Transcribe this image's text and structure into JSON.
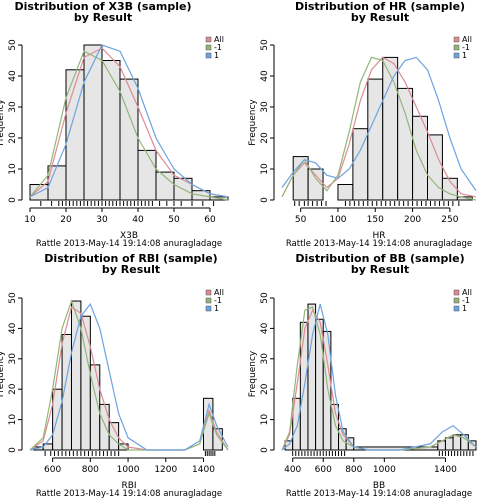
{
  "colors": {
    "bar_fill": "#e6e6e6",
    "bar_stroke": "#000000",
    "all": "#dd8b95",
    "neg1": "#94b67a",
    "pos1": "#6da3e0"
  },
  "legend_labels": [
    "All",
    "-1",
    "1"
  ],
  "footer": "Rattle 2013-May-14 19:14:08 anuragladage",
  "chart_data": [
    {
      "type": "bar",
      "title": "Distribution of X3B (sample)",
      "subtitle": "by Result",
      "xlabel": "X3B",
      "ylabel": "Frequency",
      "xlim": [
        10,
        65
      ],
      "ylim": [
        0,
        50
      ],
      "xticks": [
        10,
        20,
        30,
        40,
        50,
        60
      ],
      "yticks": [
        0,
        10,
        20,
        30,
        40,
        50
      ],
      "legend": "top-right",
      "bin_edges": [
        10,
        15,
        20,
        25,
        30,
        35,
        40,
        45,
        50,
        55,
        60,
        65
      ],
      "values": [
        5,
        11,
        42,
        50,
        45,
        39,
        16,
        9,
        7,
        3,
        1
      ],
      "rug": [
        13,
        16,
        18,
        19,
        20,
        21,
        22,
        23,
        24,
        25,
        26,
        27,
        28,
        29,
        30,
        31,
        32,
        33,
        34,
        35,
        36,
        37,
        38,
        39,
        40,
        41,
        42,
        43,
        44,
        46,
        48,
        50,
        52,
        55,
        58,
        61
      ],
      "series": [
        {
          "name": "All",
          "color_key": "all",
          "x": [
            10,
            15,
            20,
            25,
            30,
            35,
            40,
            45,
            50,
            55,
            60,
            65
          ],
          "y": [
            1,
            6,
            28,
            46,
            49,
            43,
            30,
            16,
            8,
            5,
            2,
            1
          ]
        },
        {
          "name": "-1",
          "color_key": "neg1",
          "x": [
            10,
            15,
            20,
            25,
            30,
            35,
            40,
            45,
            50,
            55,
            60,
            65
          ],
          "y": [
            1,
            8,
            33,
            48,
            45,
            35,
            20,
            10,
            5,
            2,
            1,
            0
          ]
        },
        {
          "name": "1",
          "color_key": "pos1",
          "x": [
            10,
            15,
            20,
            25,
            30,
            35,
            40,
            45,
            50,
            55,
            60,
            65
          ],
          "y": [
            1,
            4,
            18,
            38,
            50,
            48,
            36,
            20,
            10,
            5,
            2,
            1
          ]
        }
      ]
    },
    {
      "type": "bar",
      "title": "Distribution of HR (sample)",
      "subtitle": "by Result",
      "xlabel": "HR",
      "ylabel": "Frequency",
      "xlim": [
        25,
        285
      ],
      "ylim": [
        0,
        50
      ],
      "xticks": [
        50,
        100,
        150,
        200,
        250
      ],
      "yticks": [
        0,
        10,
        20,
        30,
        40,
        50
      ],
      "legend": "top-right",
      "bin_edges": [
        40,
        60,
        80,
        100,
        120,
        140,
        160,
        180,
        200,
        220,
        240,
        260,
        280
      ],
      "values": [
        14,
        10,
        0,
        5,
        23,
        39,
        46,
        36,
        27,
        21,
        7,
        1
      ],
      "rug": [
        42,
        48,
        55,
        60,
        66,
        72,
        78,
        84,
        110,
        116,
        122,
        128,
        134,
        140,
        146,
        152,
        158,
        164,
        170,
        176,
        182,
        188,
        194,
        200,
        206,
        212,
        218,
        224,
        230,
        236,
        242,
        248,
        254,
        262
      ],
      "series": [
        {
          "name": "All",
          "color_key": "all",
          "x": [
            25,
            40,
            55,
            70,
            85,
            100,
            115,
            130,
            145,
            160,
            175,
            190,
            205,
            220,
            235,
            250,
            265,
            285
          ],
          "y": [
            1,
            8,
            12,
            8,
            4,
            7,
            18,
            32,
            42,
            46,
            44,
            38,
            30,
            22,
            13,
            6,
            2,
            1
          ]
        },
        {
          "name": "-1",
          "color_key": "neg1",
          "x": [
            25,
            40,
            55,
            70,
            85,
            100,
            115,
            130,
            145,
            160,
            175,
            190,
            205,
            220,
            235,
            250,
            265,
            285
          ],
          "y": [
            1,
            8,
            13,
            7,
            3,
            8,
            22,
            38,
            46,
            45,
            38,
            28,
            16,
            8,
            4,
            2,
            1,
            0
          ]
        },
        {
          "name": "1",
          "color_key": "pos1",
          "x": [
            25,
            40,
            55,
            70,
            85,
            100,
            115,
            130,
            145,
            160,
            175,
            190,
            205,
            220,
            235,
            250,
            265,
            285
          ],
          "y": [
            4,
            9,
            13,
            12,
            8,
            7,
            10,
            16,
            24,
            32,
            40,
            45,
            46,
            42,
            32,
            20,
            10,
            3
          ]
        }
      ]
    },
    {
      "type": "bar",
      "title": "Distribution of RBI (sample)",
      "subtitle": "by Result",
      "xlabel": "RBI",
      "ylabel": "Frequency",
      "xlim": [
        480,
        1530
      ],
      "ylim": [
        0,
        50
      ],
      "xticks": [
        600,
        800,
        1000,
        1200,
        1400
      ],
      "yticks": [
        0,
        10,
        20,
        30,
        40,
        50
      ],
      "legend": "top-right",
      "bin_edges": [
        500,
        550,
        600,
        650,
        700,
        750,
        800,
        850,
        900,
        950,
        1000,
        1050,
        1100,
        1150,
        1200,
        1250,
        1300,
        1350,
        1400,
        1450,
        1500
      ],
      "values": [
        1,
        2,
        20,
        38,
        49,
        44,
        28,
        15,
        9,
        2,
        0,
        0,
        0,
        0,
        0,
        0,
        0,
        0,
        17,
        7
      ],
      "rug": [
        560,
        590,
        610,
        630,
        650,
        670,
        690,
        710,
        730,
        750,
        770,
        790,
        810,
        830,
        850,
        870,
        890,
        910,
        930,
        950,
        1410,
        1420,
        1430,
        1440,
        1450,
        1460
      ],
      "series": [
        {
          "name": "All",
          "color_key": "all",
          "x": [
            480,
            550,
            600,
            650,
            700,
            750,
            800,
            850,
            900,
            950,
            1000,
            1100,
            1200,
            1300,
            1380,
            1430,
            1470,
            1530
          ],
          "y": [
            0,
            3,
            15,
            35,
            47,
            45,
            34,
            20,
            10,
            4,
            1,
            0,
            0,
            0,
            2,
            13,
            6,
            0
          ]
        },
        {
          "name": "-1",
          "color_key": "neg1",
          "x": [
            480,
            550,
            600,
            650,
            700,
            750,
            800,
            850,
            900,
            950,
            1000,
            1100,
            1200,
            1300,
            1380,
            1430,
            1470,
            1530
          ],
          "y": [
            0,
            4,
            20,
            40,
            49,
            40,
            25,
            12,
            5,
            2,
            0,
            0,
            0,
            0,
            2,
            12,
            5,
            0
          ]
        },
        {
          "name": "1",
          "color_key": "pos1",
          "x": [
            480,
            550,
            600,
            650,
            700,
            750,
            800,
            850,
            900,
            950,
            1000,
            1100,
            1200,
            1300,
            1380,
            1430,
            1470,
            1530
          ],
          "y": [
            0,
            1,
            5,
            16,
            32,
            44,
            48,
            40,
            26,
            12,
            4,
            0,
            0,
            0,
            3,
            15,
            8,
            1
          ]
        }
      ]
    },
    {
      "type": "bar",
      "title": "Distribution of BB (sample)",
      "subtitle": "by Result",
      "xlabel": "BB",
      "ylabel": "Frequency",
      "xlim": [
        330,
        1600
      ],
      "ylim": [
        0,
        50
      ],
      "xticks": [
        400,
        600,
        800,
        1000,
        1400
      ],
      "yticks": [
        0,
        10,
        20,
        30,
        40,
        50
      ],
      "legend": "top-right",
      "bin_edges": [
        350,
        400,
        450,
        500,
        550,
        600,
        650,
        700,
        750,
        800,
        1350,
        1400,
        1450,
        1500,
        1550,
        1600
      ],
      "values": [
        3,
        17,
        42,
        48,
        43,
        39,
        15,
        7,
        4,
        1,
        3,
        4,
        5,
        5,
        3
      ],
      "rug": [
        400,
        420,
        440,
        460,
        480,
        500,
        520,
        540,
        560,
        580,
        600,
        620,
        640,
        660,
        680,
        700,
        720,
        740,
        1360,
        1380,
        1400,
        1420,
        1440,
        1460,
        1480,
        1500,
        1520,
        1540,
        1560,
        1580
      ],
      "series": [
        {
          "name": "All",
          "color_key": "all",
          "x": [
            330,
            380,
            430,
            480,
            530,
            580,
            630,
            680,
            730,
            800,
            900,
            1100,
            1300,
            1380,
            1450,
            1520,
            1600
          ],
          "y": [
            0,
            5,
            22,
            40,
            46,
            42,
            28,
            12,
            5,
            1,
            0,
            0,
            1,
            3,
            5,
            4,
            1
          ]
        },
        {
          "name": "-1",
          "color_key": "neg1",
          "x": [
            330,
            380,
            430,
            480,
            530,
            580,
            630,
            680,
            730,
            800,
            900,
            1100,
            1300,
            1380,
            1450,
            1520,
            1600
          ],
          "y": [
            0,
            6,
            28,
            46,
            47,
            38,
            20,
            8,
            3,
            1,
            0,
            0,
            1,
            3,
            5,
            4,
            1
          ]
        },
        {
          "name": "1",
          "color_key": "pos1",
          "x": [
            330,
            380,
            430,
            480,
            530,
            580,
            630,
            680,
            730,
            800,
            900,
            1100,
            1300,
            1380,
            1450,
            1520,
            1600
          ],
          "y": [
            0,
            2,
            8,
            22,
            38,
            48,
            38,
            18,
            6,
            1,
            0,
            0,
            2,
            6,
            8,
            5,
            1
          ]
        }
      ]
    }
  ]
}
